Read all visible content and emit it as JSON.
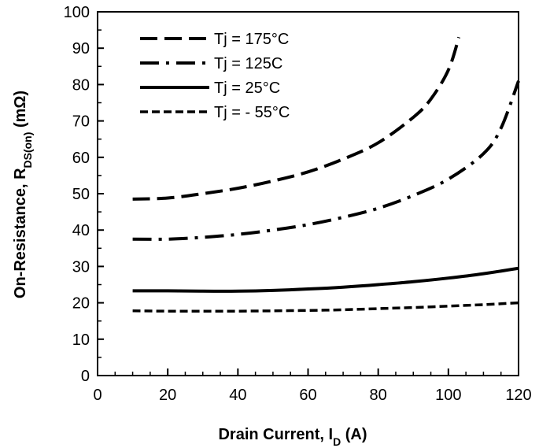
{
  "chart_data": {
    "type": "line",
    "xlabel_main": "Drain Current, I",
    "xlabel_sub": "D",
    "xlabel_unit": " (A)",
    "ylabel_main": "On-Resistance, R",
    "ylabel_sub": "DS(on)",
    "ylabel_unit": " (mΩ)",
    "xlim": [
      0,
      120
    ],
    "ylim": [
      0,
      100
    ],
    "xticks": [
      0,
      20,
      40,
      60,
      80,
      100,
      120
    ],
    "yticks": [
      0,
      10,
      20,
      30,
      40,
      50,
      60,
      70,
      80,
      90,
      100
    ],
    "grid": false,
    "legend_position": "top-left",
    "series": [
      {
        "name": "Tj = 175°C",
        "style": "long-dash",
        "x": [
          10,
          20,
          30,
          40,
          50,
          60,
          70,
          80,
          90,
          95,
          100,
          103
        ],
        "y": [
          48.5,
          48.8,
          50,
          51.5,
          53.5,
          56,
          59.5,
          64,
          71,
          76,
          84,
          93
        ]
      },
      {
        "name": "Tj = 125C",
        "style": "dash-dot",
        "x": [
          10,
          20,
          30,
          40,
          50,
          60,
          70,
          80,
          90,
          100,
          110,
          115,
          120
        ],
        "y": [
          37.5,
          37.5,
          38,
          38.8,
          40,
          41.5,
          43.5,
          46,
          49.5,
          54,
          61,
          68,
          81
        ]
      },
      {
        "name": "Tj = 25°C",
        "style": "solid",
        "x": [
          10,
          20,
          30,
          40,
          50,
          60,
          70,
          80,
          90,
          100,
          110,
          120
        ],
        "y": [
          23.3,
          23.3,
          23.2,
          23.2,
          23.4,
          23.8,
          24.3,
          25,
          25.8,
          26.8,
          28,
          29.5
        ]
      },
      {
        "name": "Tj = - 55°C",
        "style": "short-dash",
        "x": [
          10,
          20,
          30,
          40,
          50,
          60,
          70,
          80,
          90,
          100,
          110,
          120
        ],
        "y": [
          17.8,
          17.7,
          17.7,
          17.7,
          17.8,
          17.9,
          18.1,
          18.4,
          18.7,
          19.1,
          19.5,
          20
        ]
      }
    ]
  }
}
